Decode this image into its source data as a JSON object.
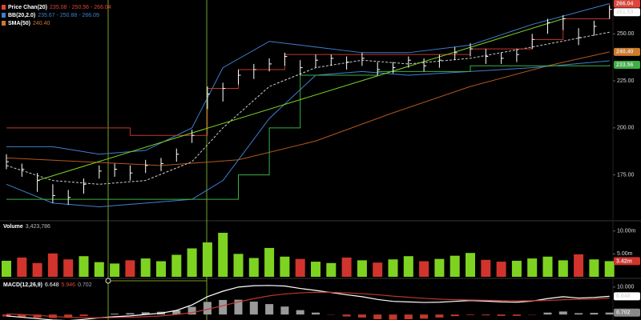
{
  "chart_data": [
    {
      "type": "ohlc",
      "legend": [
        {
          "name": "Price Chan(20)",
          "text": "235.08 - 250.56 - 266.04",
          "color": "#e0443a"
        },
        {
          "name": "BB(20,2.0)",
          "text": "235.67 - 250.88 - 266.09",
          "color": "#3f7fd0"
        },
        {
          "name": "SMA(50)",
          "text": "240.40",
          "color": "#d07a2a"
        }
      ],
      "close": [
        182,
        178,
        172,
        164,
        163,
        170,
        177,
        178,
        176,
        180,
        181,
        186,
        196,
        218,
        221,
        228,
        231,
        234,
        238,
        232,
        236,
        237,
        235,
        237,
        231,
        232,
        236,
        233,
        236,
        240,
        242,
        238,
        237,
        239,
        247,
        256,
        258,
        248,
        254,
        263
      ],
      "high": [
        186,
        181,
        176,
        170,
        167,
        173,
        180,
        181,
        180,
        183,
        184,
        189,
        199,
        222,
        224,
        231,
        234,
        237,
        240,
        236,
        239,
        239,
        238,
        240,
        235,
        235,
        238,
        237,
        239,
        243,
        245,
        242,
        240,
        242,
        250,
        258,
        260,
        253,
        257,
        265
      ],
      "low": [
        178,
        174,
        166,
        160,
        159,
        165,
        173,
        174,
        172,
        176,
        177,
        182,
        192,
        210,
        214,
        223,
        226,
        230,
        233,
        228,
        232,
        233,
        231,
        233,
        228,
        229,
        232,
        230,
        232,
        236,
        238,
        234,
        234,
        235,
        242,
        250,
        252,
        244,
        249,
        258
      ],
      "bar_color": "#ffffff",
      "ylim": [
        151,
        268
      ],
      "yticks": [
        {
          "value": 175,
          "label": "175.00"
        },
        {
          "value": 200,
          "label": "200.00"
        },
        {
          "value": 225,
          "label": "225.00"
        },
        {
          "value": 250,
          "label": "250.00"
        }
      ],
      "overlays": [
        {
          "style": "line",
          "color": "#b5561d",
          "x": [
            0,
            5,
            10,
            15,
            20,
            25,
            30,
            35,
            39
          ],
          "values": [
            184,
            182,
            180,
            183,
            193,
            208,
            222,
            233,
            240.4
          ]
        },
        {
          "style": "line",
          "color": "#3f7fd0",
          "x": [
            0,
            3,
            6,
            9,
            12,
            14,
            17,
            20,
            23,
            26,
            30,
            34,
            39
          ],
          "values": [
            190,
            190,
            186,
            188,
            200,
            232,
            246,
            243,
            240,
            240,
            244,
            255,
            266.09
          ]
        },
        {
          "style": "line",
          "color": "#3f7fd0",
          "x": [
            0,
            3,
            6,
            9,
            12,
            14,
            17,
            20,
            23,
            26,
            30,
            34,
            39
          ],
          "values": [
            170,
            160,
            158,
            160,
            162,
            172,
            205,
            228,
            230,
            228,
            230,
            232,
            235.67
          ]
        },
        {
          "style": "dashed",
          "color": "#cccccc",
          "x": [
            0,
            3,
            6,
            9,
            12,
            14,
            17,
            20,
            23,
            26,
            30,
            34,
            39
          ],
          "values": [
            180,
            172,
            170,
            172,
            182,
            200,
            222,
            232,
            236,
            234,
            237,
            243,
            250.88
          ]
        },
        {
          "style": "step",
          "color": "#c0392b",
          "x": [
            0,
            3,
            8,
            12,
            13,
            15,
            18,
            30,
            34,
            36,
            39
          ],
          "values": [
            200,
            200,
            196,
            196,
            221,
            231,
            239,
            242,
            247,
            258,
            266.04
          ]
        },
        {
          "style": "step",
          "color": "#3cb043",
          "x": [
            0,
            4,
            13,
            15,
            17,
            19,
            24,
            30,
            39
          ],
          "values": [
            162,
            162,
            162,
            175,
            200,
            228,
            230,
            233,
            233.56
          ]
        },
        {
          "style": "line",
          "color": "#7ed321",
          "x": [
            2,
            36
          ],
          "values": [
            172,
            258
          ]
        }
      ],
      "readouts": [
        {
          "value": 266.04,
          "label": "266.04",
          "color": "#e0443a",
          "text_color": "#ffffff"
        },
        {
          "value": 261.53,
          "label": "261.53",
          "color": "#ffffff",
          "text_color": "#000000"
        },
        {
          "value": 240.4,
          "label": "240.40",
          "color": "#d07a2a",
          "text_color": "#000000"
        },
        {
          "value": 233.56,
          "label": "233.56",
          "color": "#3cb043",
          "text_color": "#000000"
        }
      ]
    },
    {
      "type": "bar",
      "title": "Volume",
      "title_value": "3,423,786",
      "values": [
        3.5,
        4.2,
        3.0,
        5.1,
        3.8,
        4.5,
        3.2,
        2.9,
        3.6,
        4.0,
        3.4,
        4.8,
        6.2,
        7.5,
        9.6,
        5.0,
        4.1,
        6.3,
        4.4,
        3.9,
        3.3,
        3.0,
        4.2,
        3.6,
        3.1,
        3.8,
        4.5,
        3.4,
        3.9,
        4.6,
        5.2,
        3.7,
        3.3,
        3.5,
        4.0,
        4.4,
        3.6,
        4.9,
        3.8,
        3.42
      ],
      "up_color": "#7ed321",
      "down_color": "#d0342c",
      "ylim": [
        0,
        11
      ],
      "yticks": [
        {
          "value": 10,
          "label": "10.00m"
        },
        {
          "value": 5,
          "label": "5.00m"
        }
      ],
      "readout": {
        "value": 3.42,
        "label": "3.42m",
        "color": "#d0342c"
      }
    },
    {
      "type": "macd",
      "title": "MACD(12,26,9)",
      "title_values": [
        {
          "text": "6.648",
          "color": "#ffffff"
        },
        {
          "text": "5.946",
          "color": "#e0443a"
        },
        {
          "text": "0.702",
          "color": "#aaaaaa"
        }
      ],
      "macd": [
        -0.5,
        -1,
        -1.5,
        -2,
        -2.2,
        -1.8,
        -1.2,
        -0.8,
        -0.5,
        0,
        0.5,
        1.5,
        3.5,
        6.5,
        8.5,
        10,
        10.5,
        10.6,
        10.4,
        9.5,
        8.8,
        8,
        7.2,
        6.5,
        5.5,
        4.8,
        4.6,
        4.4,
        4.5,
        4.8,
        5.1,
        4.9,
        4.6,
        4.5,
        4.9,
        5.8,
        6.5,
        6.0,
        6.2,
        6.648
      ],
      "signal": [
        0.2,
        0,
        -0.3,
        -0.7,
        -1,
        -1.2,
        -1.2,
        -1.1,
        -1,
        -0.8,
        -0.5,
        0,
        0.7,
        1.9,
        3.2,
        4.6,
        5.8,
        6.8,
        7.5,
        7.9,
        8.1,
        8.1,
        7.9,
        7.6,
        7.2,
        6.7,
        6.3,
        5.9,
        5.6,
        5.4,
        5.3,
        5.2,
        5.1,
        5,
        5,
        5.1,
        5.4,
        5.5,
        5.6,
        5.946
      ],
      "hist": [
        -0.7,
        -1,
        -1.2,
        -1.3,
        -1.2,
        -0.6,
        0,
        0.3,
        0.5,
        0.8,
        1,
        1.5,
        2.8,
        4.6,
        5.3,
        5.4,
        4.7,
        3.8,
        2.9,
        1.6,
        0.7,
        -0.1,
        -0.7,
        -1.1,
        -1.7,
        -1.9,
        -1.7,
        -1.5,
        -1.1,
        -0.6,
        -0.2,
        -0.3,
        -0.5,
        -0.5,
        -0.1,
        0.7,
        1.1,
        0.5,
        0.6,
        0.702
      ],
      "macd_color": "#ffffff",
      "signal_color": "#c0392b",
      "pos_color": "#9a9a9a",
      "neg_color": "#c0392b",
      "ylim": [
        -2,
        12
      ],
      "yticks": [
        {
          "value": 10,
          "label": "10.000"
        }
      ],
      "readouts": [
        {
          "value": 6.648,
          "label": "6.648",
          "color": "#ffffff",
          "text_color": "#000000"
        },
        {
          "value": 0.702,
          "label": "0.702",
          "color": "#888888",
          "text_color": "#000000"
        }
      ]
    }
  ]
}
